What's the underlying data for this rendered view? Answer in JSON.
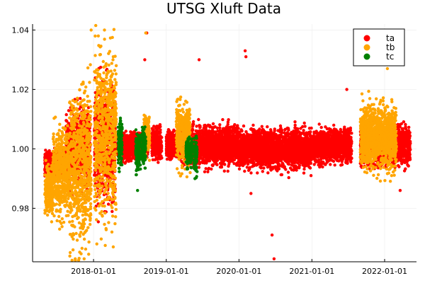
{
  "chart_data": {
    "type": "scatter",
    "title": "UTSG Xluft Data",
    "xlabel": "",
    "ylabel": "",
    "x_axis": "date",
    "xlim": [
      "2017-03-01",
      "2022-06-10"
    ],
    "ylim": [
      0.962,
      1.042
    ],
    "x_ticks": [
      "2018-01-01",
      "2019-01-01",
      "2020-01-01",
      "2021-01-01",
      "2022-01-01"
    ],
    "y_ticks": [
      0.98,
      1.0,
      1.02,
      1.04
    ],
    "y_tick_labels": [
      "0.98",
      "1.00",
      "1.02",
      "1.04"
    ],
    "grid": true,
    "legend_position": "top-right",
    "series": [
      {
        "name": "ta",
        "color": "#ff0000",
        "segments": [
          {
            "start": "2017-05-01",
            "end": "2017-08-15",
            "center": 0.995,
            "spread": 0.004
          },
          {
            "start": "2017-08-15",
            "end": "2017-12-15",
            "center": 1.0,
            "spread": 0.012
          },
          {
            "start": "2018-01-05",
            "end": "2018-04-20",
            "center": 1.002,
            "spread": 0.018
          },
          {
            "start": "2018-05-01",
            "end": "2018-10-01",
            "center": 1.001,
            "spread": 0.004
          },
          {
            "start": "2018-10-20",
            "end": "2018-12-10",
            "center": 1.002,
            "spread": 0.005
          },
          {
            "start": "2019-01-01",
            "end": "2019-03-15",
            "center": 1.001,
            "spread": 0.004
          },
          {
            "start": "2019-03-15",
            "end": "2019-12-31",
            "center": 1.001,
            "spread": 0.006
          },
          {
            "start": "2020-01-01",
            "end": "2020-12-31",
            "center": 1.0,
            "spread": 0.006
          },
          {
            "start": "2021-01-01",
            "end": "2021-07-20",
            "center": 1.001,
            "spread": 0.005
          },
          {
            "start": "2021-09-01",
            "end": "2022-05-10",
            "center": 1.001,
            "spread": 0.006
          }
        ],
        "extreme_points": [
          {
            "x": "2018-09-25",
            "y": 1.039
          },
          {
            "x": "2018-09-15",
            "y": 1.03
          },
          {
            "x": "2020-02-01",
            "y": 1.033
          },
          {
            "x": "2020-02-05",
            "y": 1.031
          },
          {
            "x": "2019-06-15",
            "y": 1.03
          },
          {
            "x": "2021-06-25",
            "y": 1.02
          },
          {
            "x": "2020-06-25",
            "y": 0.963
          },
          {
            "x": "2020-06-15",
            "y": 0.971
          },
          {
            "x": "2020-03-01",
            "y": 0.985
          },
          {
            "x": "2022-03-20",
            "y": 0.986
          },
          {
            "x": "2017-12-01",
            "y": 0.989
          }
        ]
      },
      {
        "name": "tb",
        "color": "#ffa500",
        "segments": [
          {
            "start": "2017-05-01",
            "end": "2017-06-10",
            "center": 0.986,
            "spread": 0.008
          },
          {
            "start": "2017-06-10",
            "end": "2017-09-01",
            "center": 0.992,
            "spread": 0.014
          },
          {
            "start": "2017-09-01",
            "end": "2017-12-20",
            "center": 0.995,
            "spread": 0.024
          },
          {
            "start": "2018-01-05",
            "end": "2018-04-25",
            "center": 1.005,
            "spread": 0.026
          },
          {
            "start": "2018-09-10",
            "end": "2018-10-10",
            "center": 1.005,
            "spread": 0.006
          },
          {
            "start": "2019-02-20",
            "end": "2019-05-01",
            "center": 1.005,
            "spread": 0.01
          },
          {
            "start": "2021-09-01",
            "end": "2022-03-01",
            "center": 1.004,
            "spread": 0.01
          }
        ],
        "extreme_points": [
          {
            "x": "2017-10-01",
            "y": 0.963
          },
          {
            "x": "2017-11-15",
            "y": 0.963
          },
          {
            "x": "2017-09-20",
            "y": 0.966
          },
          {
            "x": "2018-02-25",
            "y": 1.04
          },
          {
            "x": "2018-01-25",
            "y": 1.038
          },
          {
            "x": "2017-12-20",
            "y": 1.04
          },
          {
            "x": "2018-09-20",
            "y": 1.039
          },
          {
            "x": "2022-01-15",
            "y": 1.027
          },
          {
            "x": "2018-04-10",
            "y": 1.031
          },
          {
            "x": "2018-04-10",
            "y": 0.967
          }
        ]
      },
      {
        "name": "tc",
        "color": "#008000",
        "segments": [
          {
            "start": "2018-05-05",
            "end": "2018-05-25",
            "center": 1.002,
            "spread": 0.008
          },
          {
            "start": "2018-08-01",
            "end": "2018-08-25",
            "center": 0.999,
            "spread": 0.006
          },
          {
            "start": "2018-09-01",
            "end": "2018-09-20",
            "center": 1.001,
            "spread": 0.006
          },
          {
            "start": "2019-04-10",
            "end": "2019-05-10",
            "center": 0.999,
            "spread": 0.004
          },
          {
            "start": "2019-05-20",
            "end": "2019-06-05",
            "center": 0.998,
            "spread": 0.005
          }
        ],
        "extreme_points": [
          {
            "x": "2018-08-10",
            "y": 0.986
          },
          {
            "x": "2019-05-25",
            "y": 0.99
          },
          {
            "x": "2018-08-15",
            "y": 0.993
          }
        ]
      }
    ]
  }
}
